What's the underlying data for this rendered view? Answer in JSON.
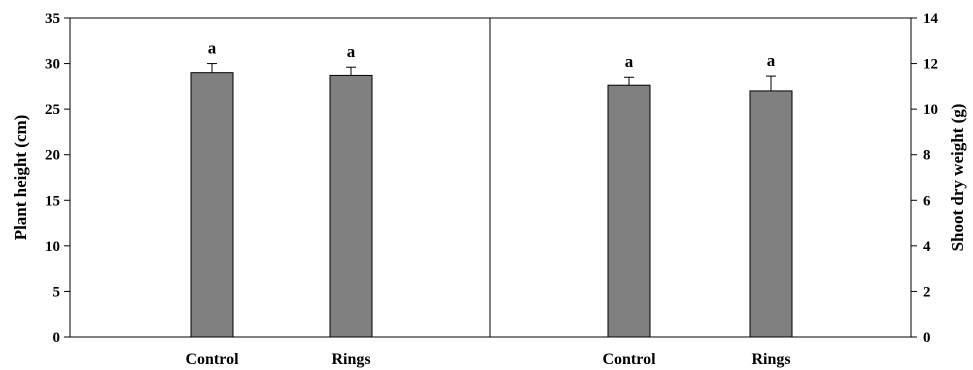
{
  "chart_data": [
    {
      "type": "bar",
      "categories": [
        "Control",
        "Rings"
      ],
      "values": [
        29.0,
        28.7
      ],
      "errors": [
        1.0,
        0.9
      ],
      "significance": [
        "a",
        "a"
      ],
      "ylabel": "Plant height (cm)",
      "ylim": [
        0,
        35
      ],
      "yticks": [
        "0",
        "5",
        "10",
        "15",
        "20",
        "25",
        "30",
        "35"
      ],
      "bar_color": "#808080",
      "grid": false,
      "y_axis_side": "left"
    },
    {
      "type": "bar",
      "categories": [
        "Control",
        "Rings"
      ],
      "values": [
        11.05,
        10.8
      ],
      "errors": [
        0.35,
        0.65
      ],
      "significance": [
        "a",
        "a"
      ],
      "ylabel": "Shoot dry weight (g)",
      "ylim": [
        0,
        14
      ],
      "yticks": [
        "0",
        "2",
        "4",
        "6",
        "8",
        "10",
        "12",
        "14"
      ],
      "bar_color": "#808080",
      "grid": false,
      "y_axis_side": "right"
    }
  ]
}
